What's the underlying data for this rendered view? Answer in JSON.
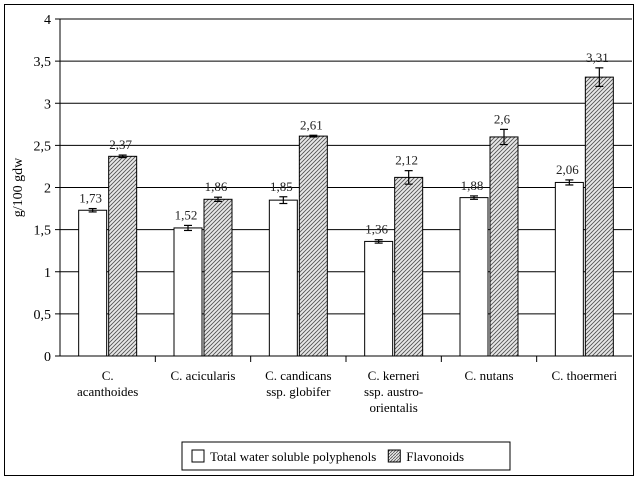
{
  "chart_data": {
    "type": "bar",
    "ylabel": "g/100 gdw",
    "ylim": [
      0,
      4
    ],
    "yticks": [
      "0",
      "0,5",
      "1",
      "1,5",
      "2",
      "2,5",
      "3",
      "3,5",
      "4"
    ],
    "grid": "horizontal",
    "legend_placement": "bottom",
    "categories": [
      [
        "C.",
        "acanthoides"
      ],
      [
        "C. acicularis"
      ],
      [
        "C. candicans",
        "ssp. globifer"
      ],
      [
        "C. kerneri",
        "ssp. austro-",
        "orientalis"
      ],
      [
        "C. nutans"
      ],
      [
        "C. thoermeri"
      ]
    ],
    "series": [
      {
        "name": "Total water soluble polyphenols",
        "values": [
          1.73,
          1.52,
          1.85,
          1.36,
          1.88,
          2.06
        ],
        "labels": [
          "1,73",
          "1,52",
          "1,85",
          "1,36",
          "1,88",
          "2,06"
        ],
        "errors": [
          0.02,
          0.03,
          0.04,
          0.02,
          0.02,
          0.03
        ],
        "fill": "#ffffff"
      },
      {
        "name": "Flavonoids",
        "values": [
          2.37,
          1.86,
          2.61,
          2.12,
          2.6,
          3.31
        ],
        "labels": [
          "2,37",
          "1,86",
          "2,61",
          "2,12",
          "2,6",
          "3,31"
        ],
        "errors": [
          0.015,
          0.025,
          0.01,
          0.08,
          0.09,
          0.11
        ],
        "fill": "hatched"
      }
    ]
  }
}
